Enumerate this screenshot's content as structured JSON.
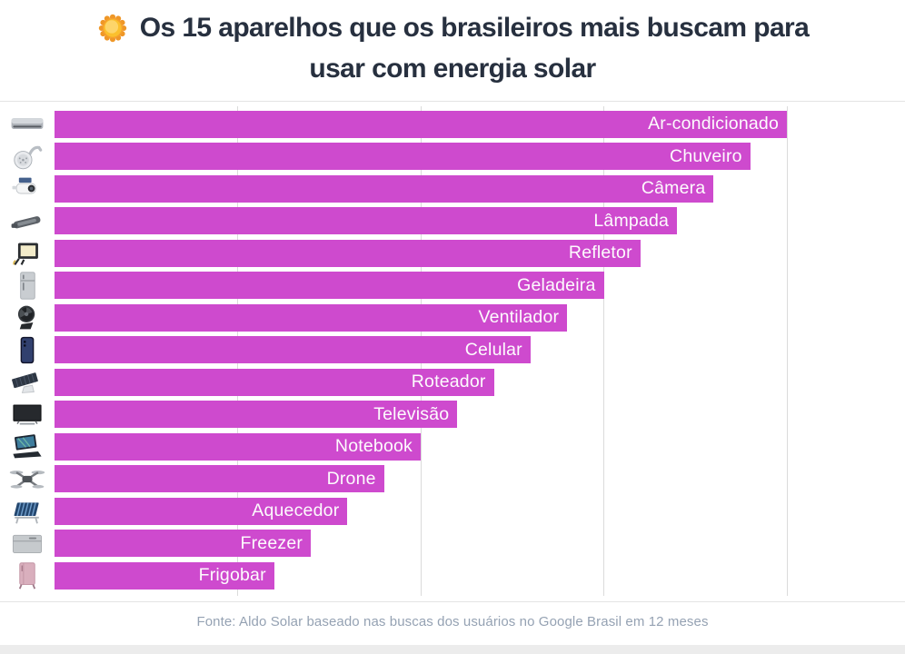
{
  "title": {
    "emoji": "sun-icon",
    "line1": "Os 15 aparelhos que os brasileiros mais buscam para",
    "line2": "usar com energia solar"
  },
  "footer": {
    "source": "Fonte: Aldo Solar baseado nas buscas dos usuários no Google Brasil em 12 meses"
  },
  "colors": {
    "bar": "#ce4ace",
    "title_text": "#27303f",
    "bar_label_text": "#ffffff",
    "footer_text": "#95a2b3",
    "gridline": "#dbdbdb",
    "separator": "#e4e4e4",
    "bottom_strip": "#ececec"
  },
  "chart_data": {
    "type": "bar",
    "orientation": "horizontal",
    "title": "Os 15 aparelhos que os brasileiros mais buscam para usar com energia solar",
    "xlabel": "",
    "ylabel": "",
    "xlim": [
      0,
      100
    ],
    "gridlines_x": [
      25,
      50,
      75,
      100
    ],
    "grid": "vertical-only, no tick labels",
    "legend": "none",
    "value_label_style": "category name in white inside right end of bar",
    "categories": [
      "Ar-condicionado",
      "Chuveiro",
      "Câmera",
      "Lâmpada",
      "Refletor",
      "Geladeira",
      "Ventilador",
      "Celular",
      "Roteador",
      "Televisão",
      "Notebook",
      "Drone",
      "Aquecedor",
      "Freezer",
      "Frigobar"
    ],
    "values": [
      100,
      95,
      90,
      85,
      80,
      75,
      70,
      65,
      60,
      55,
      50,
      45,
      40,
      35,
      30
    ],
    "icons": [
      "air-conditioner-icon",
      "shower-head-icon",
      "security-camera-icon",
      "street-lamp-icon",
      "floodlight-icon",
      "refrigerator-icon",
      "fan-icon",
      "smartphone-icon",
      "solar-router-icon",
      "tv-icon",
      "laptop-icon",
      "drone-icon",
      "solar-heater-icon",
      "freezer-icon",
      "frigobar-icon"
    ]
  }
}
